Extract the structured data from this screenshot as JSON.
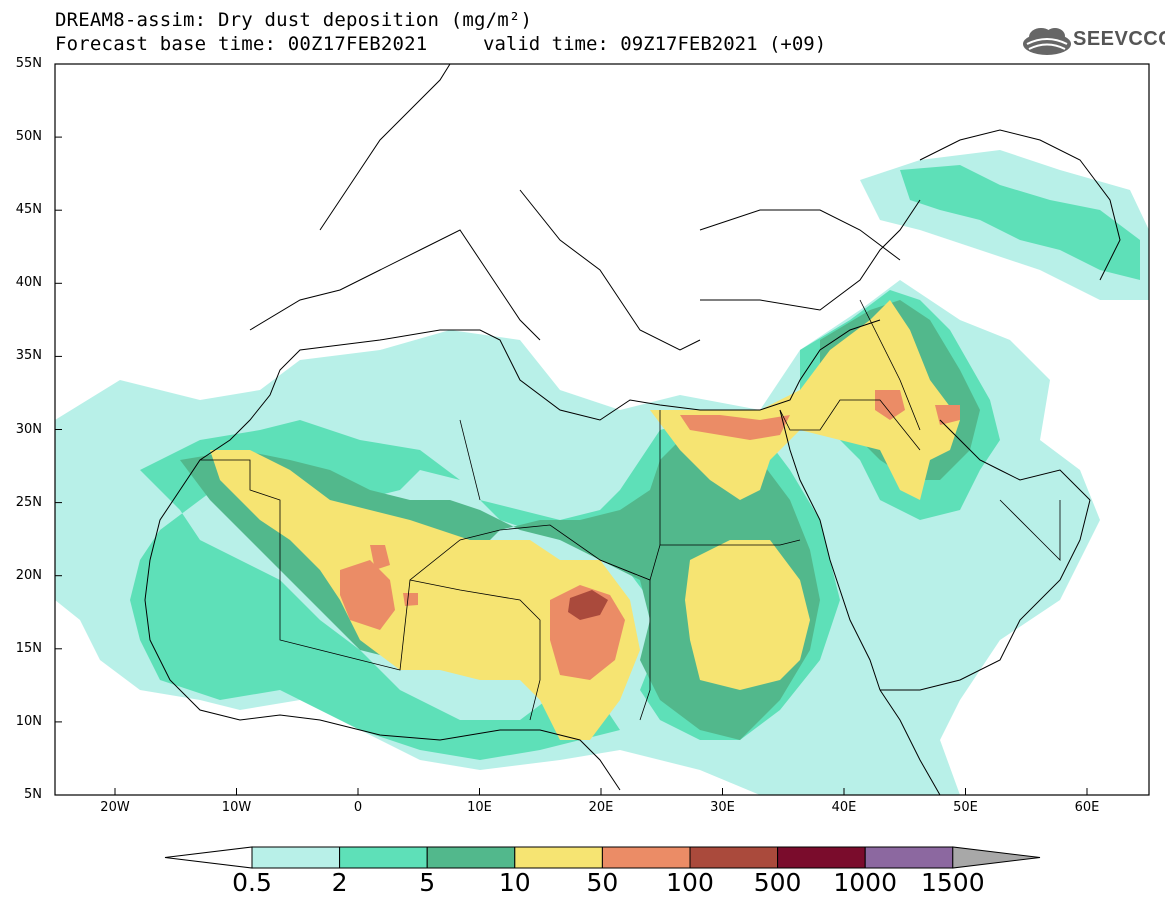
{
  "header": {
    "title": "DREAM8-assim: Dry dust deposition (mg/m²)",
    "base_time": "Forecast base time: 00Z17FEB2021",
    "valid_time": "valid time: 09Z17FEB2021 (+09)"
  },
  "logo": {
    "text": "SEEVCCC",
    "icon": "cloud-icon"
  },
  "map": {
    "lat_labels": [
      "55N",
      "50N",
      "45N",
      "40N",
      "35N",
      "30N",
      "25N",
      "20N",
      "15N",
      "10N",
      "5N"
    ],
    "lon_labels": [
      "20W",
      "10W",
      "0",
      "10E",
      "20E",
      "30E",
      "40E",
      "50E",
      "60E"
    ]
  },
  "colorbar": {
    "labels": [
      "0.5",
      "2",
      "5",
      "10",
      "50",
      "100",
      "500",
      "1000",
      "1500"
    ],
    "colors": [
      "#b8f0e8",
      "#5ee0b8",
      "#52b88c",
      "#f6e472",
      "#eb8c66",
      "#aa4a3c",
      "#7a0c2c",
      "#8c68a0",
      "#a8a8a8"
    ]
  }
}
